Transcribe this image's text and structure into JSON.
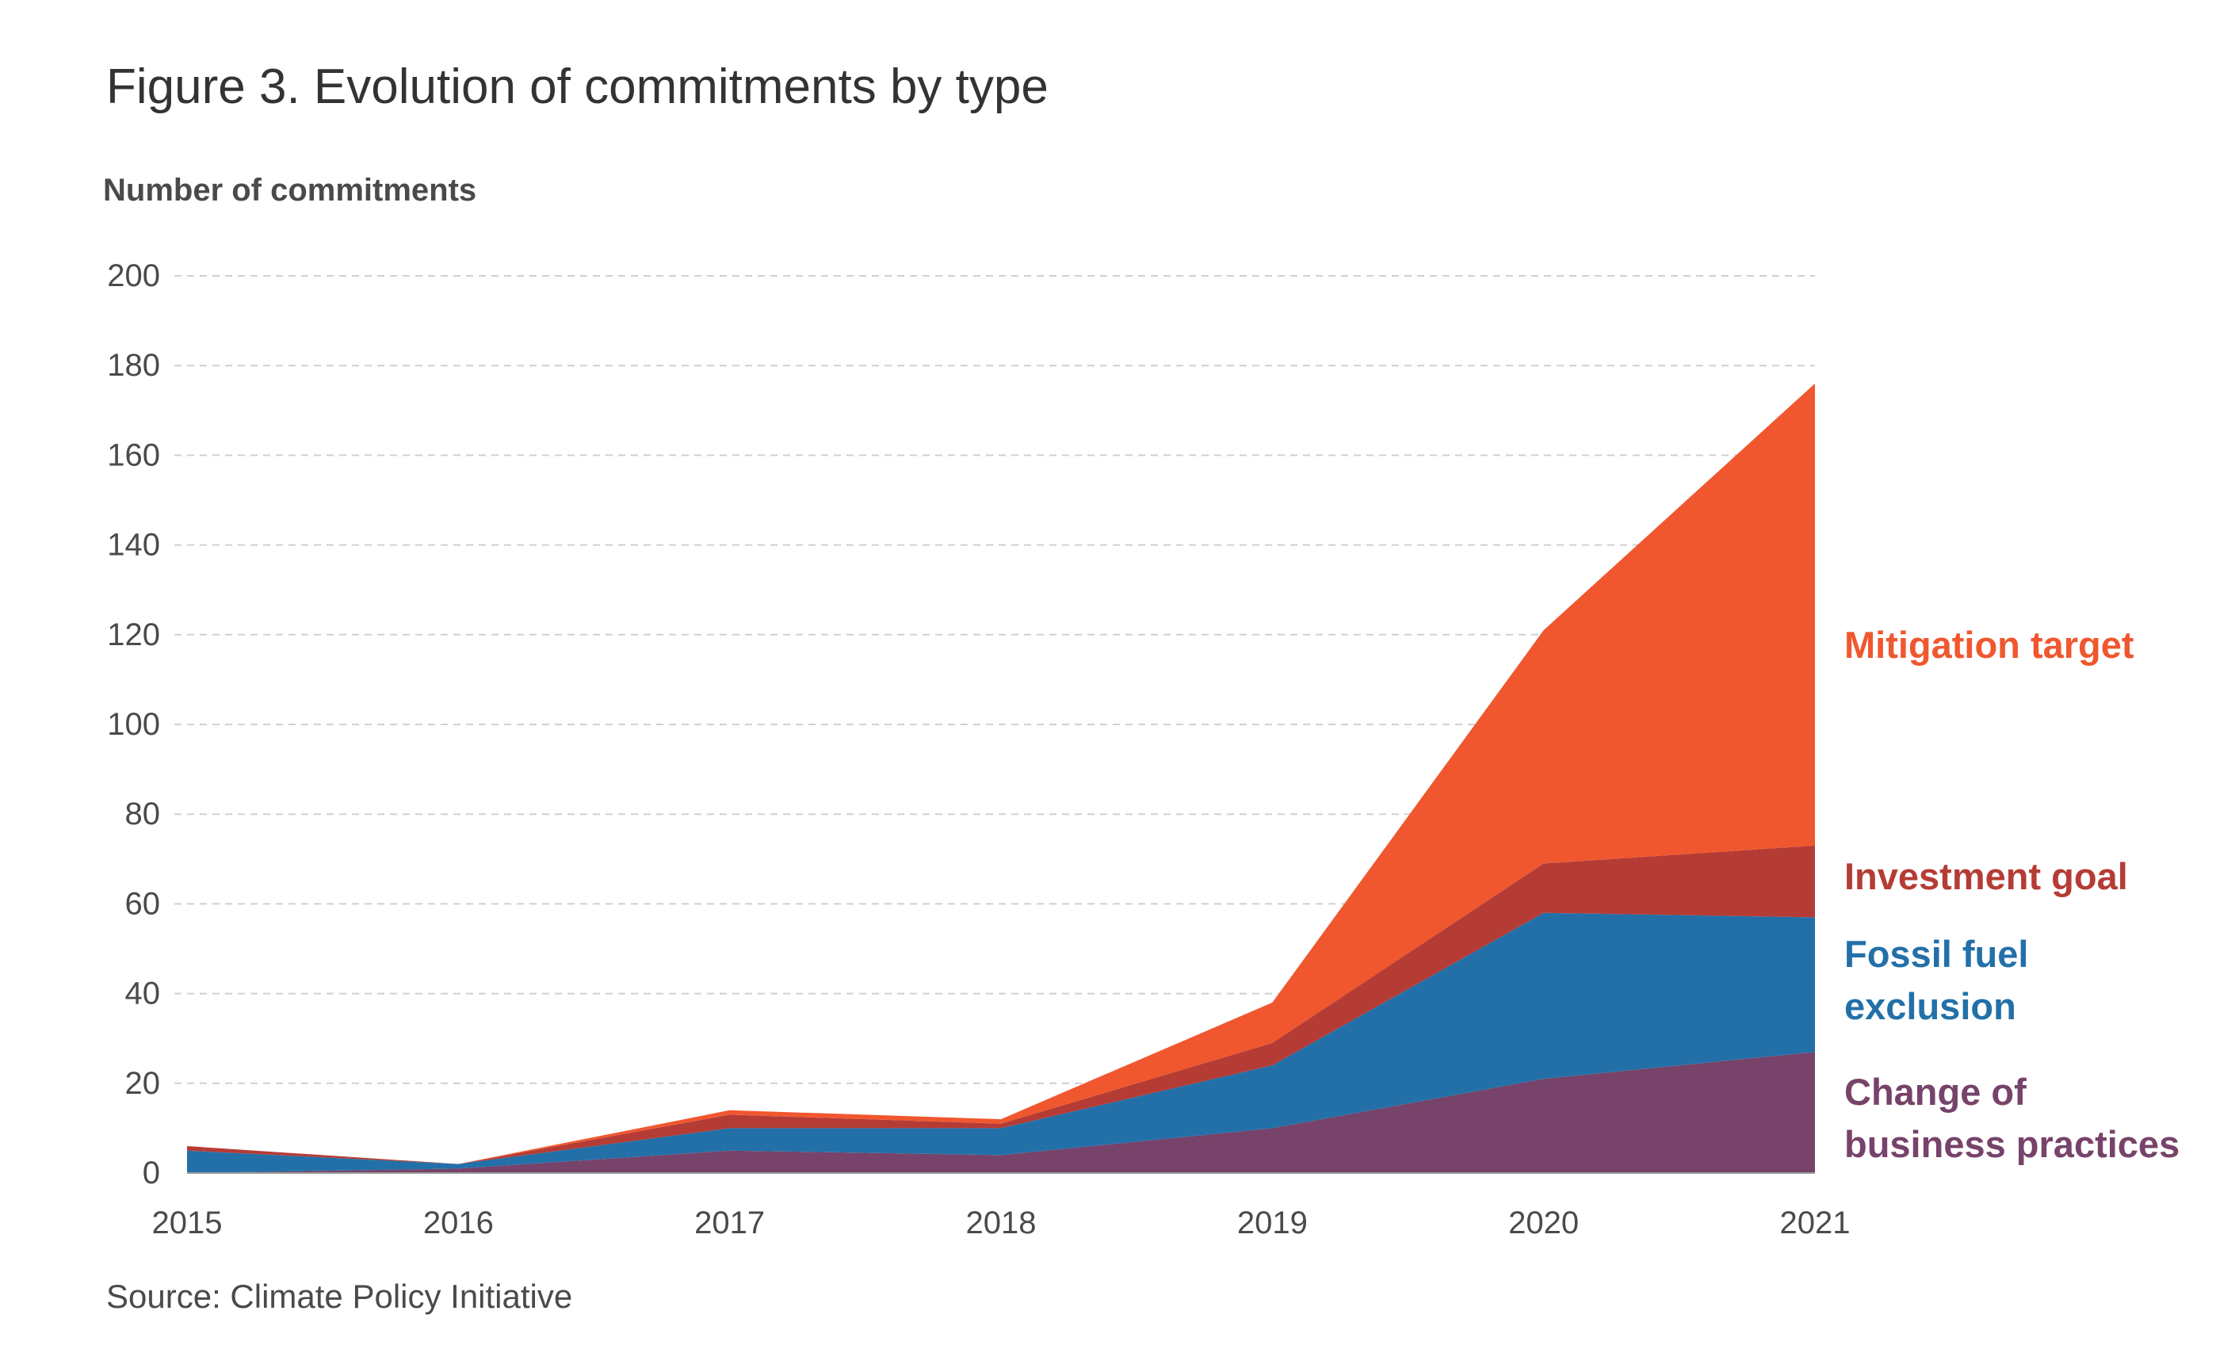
{
  "figure": {
    "title": "Figure 3. Evolution of commitments by type",
    "source": "Source: Climate Policy Initiative"
  },
  "chart_data": {
    "type": "area",
    "stacked": true,
    "title": "Figure 3. Evolution of commitments by type",
    "ylabel": "Number of commitments",
    "xlabel": "",
    "x": [
      2015,
      2016,
      2017,
      2018,
      2019,
      2020,
      2021
    ],
    "x_tick_labels": [
      "2015",
      "2016",
      "2017",
      "2018",
      "2019",
      "2020",
      "2021"
    ],
    "y_ticks": [
      0,
      20,
      40,
      60,
      80,
      100,
      120,
      140,
      160,
      180,
      200
    ],
    "ylim": [
      0,
      200
    ],
    "grid": "horizontal dashed",
    "legend": "inline labels right of chart",
    "series": [
      {
        "name": "Change of business practices",
        "label_lines": [
          "Change of",
          "business practices"
        ],
        "color": "#77436a",
        "values": [
          0,
          1,
          5,
          4,
          10,
          21,
          27
        ]
      },
      {
        "name": "Fossil fuel exclusion",
        "label_lines": [
          "Fossil fuel",
          "exclusion"
        ],
        "color": "#2370a9",
        "values": [
          5,
          1,
          5,
          6,
          14,
          37,
          30
        ]
      },
      {
        "name": "Investment goal",
        "label_lines": [
          "Investment goal"
        ],
        "color": "#b53c35",
        "values": [
          1,
          0,
          3,
          1,
          5,
          11,
          16
        ]
      },
      {
        "name": "Mitigation target",
        "label_lines": [
          "Mitigation target"
        ],
        "color": "#f0572f",
        "values": [
          0,
          0,
          1,
          1,
          9,
          52,
          103
        ]
      }
    ]
  }
}
